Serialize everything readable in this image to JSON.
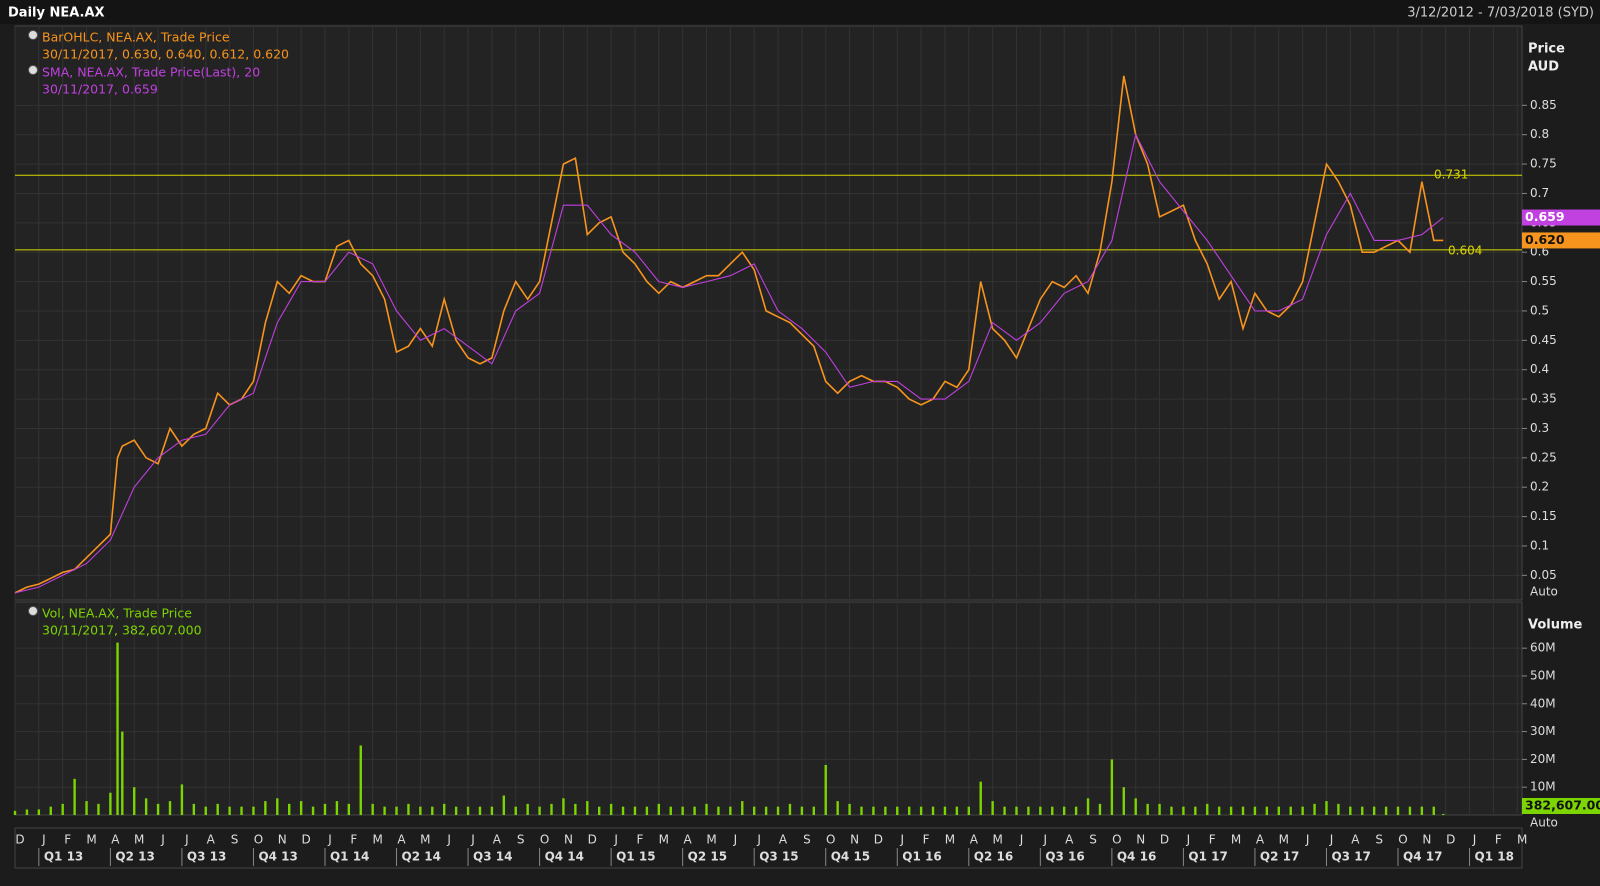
{
  "header": {
    "title": "Daily NEA.AX",
    "range": "3/12/2012 - 7/03/2018 (SYD)"
  },
  "chart_data": [
    {
      "type": "line",
      "panel": "price",
      "axis_title": [
        "Price",
        "AUD"
      ],
      "auto_label": "Auto",
      "ylim": [
        0.008,
        0.985
      ],
      "yticks": [
        0.05,
        0.1,
        0.15,
        0.2,
        0.25,
        0.3,
        0.35,
        0.4,
        0.45,
        0.5,
        0.55,
        0.6,
        0.65,
        0.7,
        0.75,
        0.8,
        0.85
      ],
      "xlim": [
        0,
        63.2
      ],
      "grid": true,
      "hlines": [
        {
          "value": 0.731,
          "label": "0.731",
          "color": "#d8d800"
        },
        {
          "value": 0.604,
          "label": "0.604",
          "color": "#d8d800"
        }
      ],
      "series": [
        {
          "name": "BarOHLC, NEA.AX, Trade Price",
          "legend_detail": "30/11/2017, 0.630, 0.640, 0.612, 0.620",
          "color": "#f7941d",
          "last_label": "0.620",
          "x": [
            0,
            0.5,
            1,
            1.5,
            2,
            2.5,
            3,
            3.5,
            4,
            4.3,
            4.5,
            5,
            5.5,
            6,
            6.5,
            7,
            7.5,
            8,
            8.5,
            9,
            9.5,
            10,
            10.5,
            11,
            11.5,
            12,
            12.5,
            13,
            13.5,
            14,
            14.5,
            15,
            15.5,
            16,
            16.5,
            17,
            17.5,
            18,
            18.5,
            19,
            19.5,
            20,
            20.5,
            21,
            21.5,
            22,
            22.5,
            23,
            23.5,
            24,
            24.5,
            25,
            25.5,
            26,
            26.5,
            27,
            27.5,
            28,
            28.5,
            29,
            29.5,
            30,
            30.5,
            31,
            31.5,
            32,
            32.5,
            33,
            33.5,
            34,
            34.5,
            35,
            35.5,
            36,
            36.5,
            37,
            37.5,
            38,
            38.5,
            39,
            39.5,
            40,
            40.5,
            41,
            41.5,
            42,
            42.5,
            43,
            43.5,
            44,
            44.5,
            45,
            45.5,
            46,
            46.5,
            47,
            47.5,
            48,
            48.5,
            49,
            49.5,
            50,
            50.5,
            51,
            51.5,
            52,
            52.5,
            53,
            53.5,
            54,
            54.5,
            55,
            55.5,
            56,
            56.5,
            57,
            57.5,
            58,
            58.5,
            59,
            59.5,
            59.9
          ],
          "values": [
            0.02,
            0.03,
            0.035,
            0.045,
            0.055,
            0.06,
            0.08,
            0.1,
            0.12,
            0.25,
            0.27,
            0.28,
            0.25,
            0.24,
            0.3,
            0.27,
            0.29,
            0.3,
            0.36,
            0.34,
            0.35,
            0.38,
            0.48,
            0.55,
            0.53,
            0.56,
            0.55,
            0.55,
            0.61,
            0.62,
            0.58,
            0.56,
            0.52,
            0.43,
            0.44,
            0.47,
            0.44,
            0.52,
            0.45,
            0.42,
            0.41,
            0.42,
            0.5,
            0.55,
            0.52,
            0.55,
            0.65,
            0.75,
            0.76,
            0.63,
            0.65,
            0.66,
            0.6,
            0.58,
            0.55,
            0.53,
            0.55,
            0.54,
            0.55,
            0.56,
            0.56,
            0.58,
            0.6,
            0.57,
            0.5,
            0.49,
            0.48,
            0.46,
            0.44,
            0.38,
            0.36,
            0.38,
            0.39,
            0.38,
            0.38,
            0.37,
            0.35,
            0.34,
            0.35,
            0.38,
            0.37,
            0.4,
            0.55,
            0.47,
            0.45,
            0.42,
            0.47,
            0.52,
            0.55,
            0.54,
            0.56,
            0.53,
            0.6,
            0.72,
            0.9,
            0.8,
            0.75,
            0.66,
            0.67,
            0.68,
            0.62,
            0.58,
            0.52,
            0.55,
            0.47,
            0.53,
            0.5,
            0.49,
            0.51,
            0.55,
            0.65,
            0.75,
            0.72,
            0.68,
            0.6,
            0.6,
            0.61,
            0.62,
            0.6,
            0.72,
            0.62,
            0.62
          ]
        },
        {
          "name": "SMA, NEA.AX, Trade Price(Last),  20",
          "legend_detail": "30/11/2017, 0.659",
          "color": "#c040e0",
          "last_label": "0.659",
          "x": [
            0,
            1,
            2,
            3,
            4,
            5,
            6,
            7,
            8,
            9,
            10,
            11,
            12,
            13,
            14,
            15,
            16,
            17,
            18,
            19,
            20,
            21,
            22,
            23,
            24,
            25,
            26,
            27,
            28,
            29,
            30,
            31,
            32,
            33,
            34,
            35,
            36,
            37,
            38,
            39,
            40,
            41,
            42,
            43,
            44,
            45,
            46,
            47,
            48,
            49,
            50,
            51,
            52,
            53,
            54,
            55,
            56,
            57,
            58,
            59,
            59.9
          ],
          "values": [
            0.02,
            0.03,
            0.05,
            0.07,
            0.11,
            0.2,
            0.25,
            0.28,
            0.29,
            0.34,
            0.36,
            0.48,
            0.55,
            0.55,
            0.6,
            0.58,
            0.5,
            0.45,
            0.47,
            0.44,
            0.41,
            0.5,
            0.53,
            0.68,
            0.68,
            0.63,
            0.6,
            0.55,
            0.54,
            0.55,
            0.56,
            0.58,
            0.5,
            0.47,
            0.43,
            0.37,
            0.38,
            0.38,
            0.35,
            0.35,
            0.38,
            0.48,
            0.45,
            0.48,
            0.53,
            0.55,
            0.62,
            0.8,
            0.72,
            0.67,
            0.62,
            0.56,
            0.5,
            0.5,
            0.52,
            0.63,
            0.7,
            0.62,
            0.62,
            0.63,
            0.659
          ]
        }
      ]
    },
    {
      "type": "bar",
      "panel": "volume",
      "axis_title": [
        "Volume"
      ],
      "auto_label": "Auto",
      "ylim": [
        0,
        76600000
      ],
      "yticks": [
        {
          "value": 10000000,
          "label": "10M"
        },
        {
          "value": 20000000,
          "label": "20M"
        },
        {
          "value": 30000000,
          "label": "30M"
        },
        {
          "value": 40000000,
          "label": "40M"
        },
        {
          "value": 50000000,
          "label": "50M"
        },
        {
          "value": 60000000,
          "label": "60M"
        }
      ],
      "xlim": [
        0,
        63.2
      ],
      "grid": true,
      "xticks": [
        {
          "value": 0,
          "label": "D"
        },
        {
          "value": 1,
          "label": "J"
        },
        {
          "value": 2,
          "label": "F"
        },
        {
          "value": 3,
          "label": "M"
        },
        {
          "value": 4,
          "label": "A"
        },
        {
          "value": 5,
          "label": "M"
        },
        {
          "value": 6,
          "label": "J"
        },
        {
          "value": 7,
          "label": "J"
        },
        {
          "value": 8,
          "label": "A"
        },
        {
          "value": 9,
          "label": "S"
        },
        {
          "value": 10,
          "label": "O"
        },
        {
          "value": 11,
          "label": "N"
        },
        {
          "value": 12,
          "label": "D"
        },
        {
          "value": 13,
          "label": "J"
        },
        {
          "value": 14,
          "label": "F"
        },
        {
          "value": 15,
          "label": "M"
        },
        {
          "value": 16,
          "label": "A"
        },
        {
          "value": 17,
          "label": "M"
        },
        {
          "value": 18,
          "label": "J"
        },
        {
          "value": 19,
          "label": "J"
        },
        {
          "value": 20,
          "label": "A"
        },
        {
          "value": 21,
          "label": "S"
        },
        {
          "value": 22,
          "label": "O"
        },
        {
          "value": 23,
          "label": "N"
        },
        {
          "value": 24,
          "label": "D"
        },
        {
          "value": 25,
          "label": "J"
        },
        {
          "value": 26,
          "label": "F"
        },
        {
          "value": 27,
          "label": "M"
        },
        {
          "value": 28,
          "label": "A"
        },
        {
          "value": 29,
          "label": "M"
        },
        {
          "value": 30,
          "label": "J"
        },
        {
          "value": 31,
          "label": "J"
        },
        {
          "value": 32,
          "label": "A"
        },
        {
          "value": 33,
          "label": "S"
        },
        {
          "value": 34,
          "label": "O"
        },
        {
          "value": 35,
          "label": "N"
        },
        {
          "value": 36,
          "label": "D"
        },
        {
          "value": 37,
          "label": "J"
        },
        {
          "value": 38,
          "label": "F"
        },
        {
          "value": 39,
          "label": "M"
        },
        {
          "value": 40,
          "label": "A"
        },
        {
          "value": 41,
          "label": "M"
        },
        {
          "value": 42,
          "label": "J"
        },
        {
          "value": 43,
          "label": "J"
        },
        {
          "value": 44,
          "label": "A"
        },
        {
          "value": 45,
          "label": "S"
        },
        {
          "value": 46,
          "label": "O"
        },
        {
          "value": 47,
          "label": "N"
        },
        {
          "value": 48,
          "label": "D"
        },
        {
          "value": 49,
          "label": "J"
        },
        {
          "value": 50,
          "label": "F"
        },
        {
          "value": 51,
          "label": "M"
        },
        {
          "value": 52,
          "label": "A"
        },
        {
          "value": 53,
          "label": "M"
        },
        {
          "value": 54,
          "label": "J"
        },
        {
          "value": 55,
          "label": "J"
        },
        {
          "value": 56,
          "label": "A"
        },
        {
          "value": 57,
          "label": "S"
        },
        {
          "value": 58,
          "label": "O"
        },
        {
          "value": 59,
          "label": "N"
        },
        {
          "value": 60,
          "label": "D"
        },
        {
          "value": 61,
          "label": "J"
        },
        {
          "value": 62,
          "label": "F"
        },
        {
          "value": 63,
          "label": "M"
        }
      ],
      "quarter_ticks": [
        {
          "value": 1,
          "label": "Q1 13"
        },
        {
          "value": 4,
          "label": "Q2 13"
        },
        {
          "value": 7,
          "label": "Q3 13"
        },
        {
          "value": 10,
          "label": "Q4 13"
        },
        {
          "value": 13,
          "label": "Q1 14"
        },
        {
          "value": 16,
          "label": "Q2 14"
        },
        {
          "value": 19,
          "label": "Q3 14"
        },
        {
          "value": 22,
          "label": "Q4 14"
        },
        {
          "value": 25,
          "label": "Q1 15"
        },
        {
          "value": 28,
          "label": "Q2 15"
        },
        {
          "value": 31,
          "label": "Q3 15"
        },
        {
          "value": 34,
          "label": "Q4 15"
        },
        {
          "value": 37,
          "label": "Q1 16"
        },
        {
          "value": 40,
          "label": "Q2 16"
        },
        {
          "value": 43,
          "label": "Q3 16"
        },
        {
          "value": 46,
          "label": "Q4 16"
        },
        {
          "value": 49,
          "label": "Q1 17"
        },
        {
          "value": 52,
          "label": "Q2 17"
        },
        {
          "value": 55,
          "label": "Q3 17"
        },
        {
          "value": 58,
          "label": "Q4 17"
        },
        {
          "value": 61,
          "label": "Q1 18"
        }
      ],
      "series": [
        {
          "name": "Vol, NEA.AX, Trade Price",
          "legend_detail": "30/11/2017, 382,607.000",
          "color": "#7cd400",
          "last_label": "382,607.00",
          "x": [
            0,
            0.5,
            1,
            1.5,
            2,
            2.5,
            3,
            3.5,
            4,
            4.3,
            4.5,
            5,
            5.5,
            6,
            6.5,
            7,
            7.5,
            8,
            8.5,
            9,
            9.5,
            10,
            10.5,
            11,
            11.5,
            12,
            12.5,
            13,
            13.5,
            14,
            14.5,
            15,
            15.5,
            16,
            16.5,
            17,
            17.5,
            18,
            18.5,
            19,
            19.5,
            20,
            20.5,
            21,
            21.5,
            22,
            22.5,
            23,
            23.5,
            24,
            24.5,
            25,
            25.5,
            26,
            26.5,
            27,
            27.5,
            28,
            28.5,
            29,
            29.5,
            30,
            30.5,
            31,
            31.5,
            32,
            32.5,
            33,
            33.5,
            34,
            34.5,
            35,
            35.5,
            36,
            36.5,
            37,
            37.5,
            38,
            38.5,
            39,
            39.5,
            40,
            40.5,
            41,
            41.5,
            42,
            42.5,
            43,
            43.5,
            44,
            44.5,
            45,
            45.5,
            46,
            46.5,
            47,
            47.5,
            48,
            48.5,
            49,
            49.5,
            50,
            50.5,
            51,
            51.5,
            52,
            52.5,
            53,
            53.5,
            54,
            54.5,
            55,
            55.5,
            56,
            56.5,
            57,
            57.5,
            58,
            58.5,
            59,
            59.5,
            59.9
          ],
          "values": [
            1500000,
            2000000,
            2000000,
            3000000,
            4000000,
            13000000,
            5000000,
            4000000,
            8000000,
            62000000,
            30000000,
            10000000,
            6000000,
            4000000,
            5000000,
            11000000,
            4000000,
            3000000,
            4000000,
            3000000,
            3000000,
            3000000,
            5000000,
            6000000,
            4000000,
            5000000,
            3000000,
            4000000,
            5000000,
            4000000,
            25000000,
            4000000,
            3000000,
            3000000,
            4000000,
            3000000,
            3000000,
            4000000,
            3000000,
            3000000,
            3000000,
            3000000,
            7000000,
            3000000,
            4000000,
            3000000,
            4000000,
            6000000,
            4000000,
            5000000,
            3000000,
            4000000,
            3000000,
            3000000,
            3000000,
            4000000,
            3000000,
            3000000,
            3000000,
            4000000,
            3000000,
            3000000,
            5000000,
            3000000,
            3000000,
            3000000,
            4000000,
            3000000,
            3000000,
            18000000,
            5000000,
            4000000,
            3000000,
            3000000,
            3000000,
            3000000,
            3000000,
            3000000,
            3000000,
            3000000,
            3000000,
            3000000,
            12000000,
            5000000,
            3000000,
            3000000,
            3000000,
            3000000,
            3000000,
            3000000,
            3000000,
            6000000,
            4000000,
            20000000,
            10000000,
            6000000,
            4000000,
            4000000,
            3000000,
            3000000,
            3000000,
            4000000,
            3000000,
            3000000,
            3000000,
            3000000,
            3000000,
            3000000,
            3000000,
            3000000,
            4000000,
            5000000,
            4000000,
            3000000,
            3000000,
            3000000,
            3000000,
            3000000,
            3000000,
            3000000,
            3000000,
            382607
          ]
        }
      ]
    }
  ]
}
